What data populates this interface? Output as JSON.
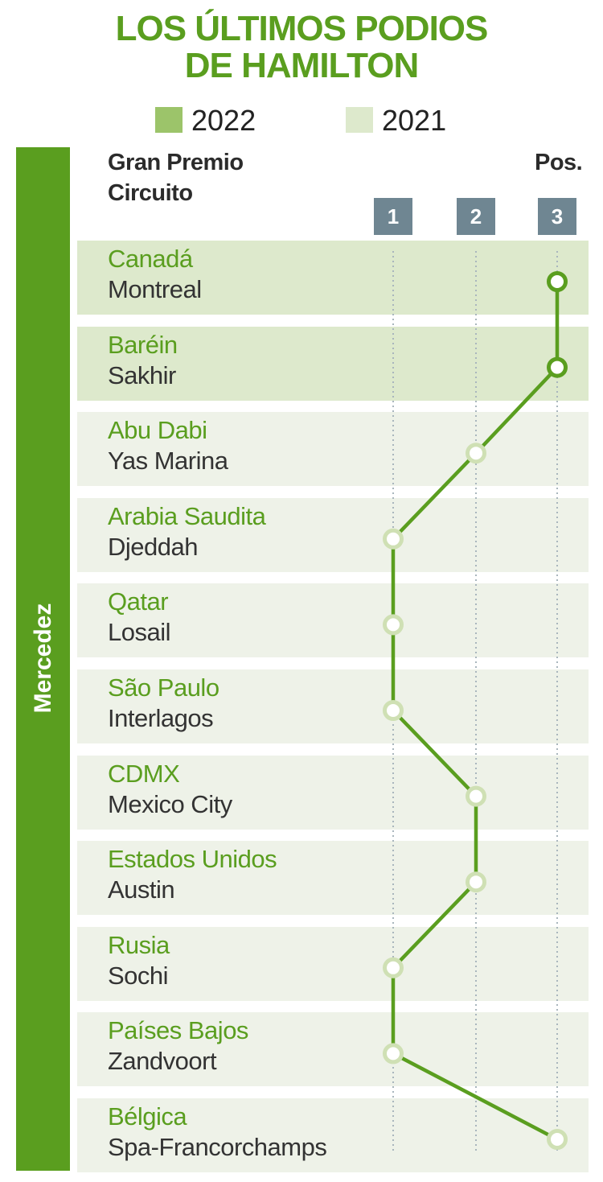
{
  "title_line1": "LOS ÚLTIMOS PODIOS",
  "title_line2": "DE HAMILTON",
  "legend": [
    {
      "label": "2022",
      "color": "#9cc46a"
    },
    {
      "label": "2021",
      "color": "#dde9cc"
    }
  ],
  "header": {
    "gp_label": "Gran Premio",
    "circuit_label": "Circuito",
    "pos_label": "Pos."
  },
  "team": "Mercedez",
  "colors": {
    "accent": "#5a9e1f",
    "row_2022": "#dde9cc",
    "row_2021": "#eef2e8",
    "pos_box": "#6f8692",
    "marker_fill": "#ffffff",
    "marker_stroke": "#cfe0b4",
    "grid": "#a9b6bd"
  },
  "chart_data": {
    "type": "line",
    "title": "LOS ÚLTIMOS PODIOS DE HAMILTON",
    "positions": [
      "1",
      "2",
      "3"
    ],
    "series": [
      {
        "values": [
          {
            "gran_premio": "Canadá",
            "circuito": "Montreal",
            "year": "2022",
            "pos": 3
          },
          {
            "gran_premio": "Baréin",
            "circuito": "Sakhir",
            "year": "2022",
            "pos": 3
          },
          {
            "gran_premio": "Abu Dabi",
            "circuito": "Yas Marina",
            "year": "2021",
            "pos": 2
          },
          {
            "gran_premio": "Arabia Saudita",
            "circuito": "Djeddah",
            "year": "2021",
            "pos": 1
          },
          {
            "gran_premio": "Qatar",
            "circuito": "Losail",
            "year": "2021",
            "pos": 1
          },
          {
            "gran_premio": "São Paulo",
            "circuito": "Interlagos",
            "year": "2021",
            "pos": 1
          },
          {
            "gran_premio": "CDMX",
            "circuito": "Mexico City",
            "year": "2021",
            "pos": 2
          },
          {
            "gran_premio": "Estados Unidos",
            "circuito": "Austin",
            "year": "2021",
            "pos": 2
          },
          {
            "gran_premio": "Rusia",
            "circuito": "Sochi",
            "year": "2021",
            "pos": 1
          },
          {
            "gran_premio": "Países Bajos",
            "circuito": "Zandvoort",
            "year": "2021",
            "pos": 1
          },
          {
            "gran_premio": "Bélgica",
            "circuito": "Spa-Francorchamps",
            "year": "2021",
            "pos": 3
          }
        ]
      }
    ],
    "legend_position": "top"
  }
}
